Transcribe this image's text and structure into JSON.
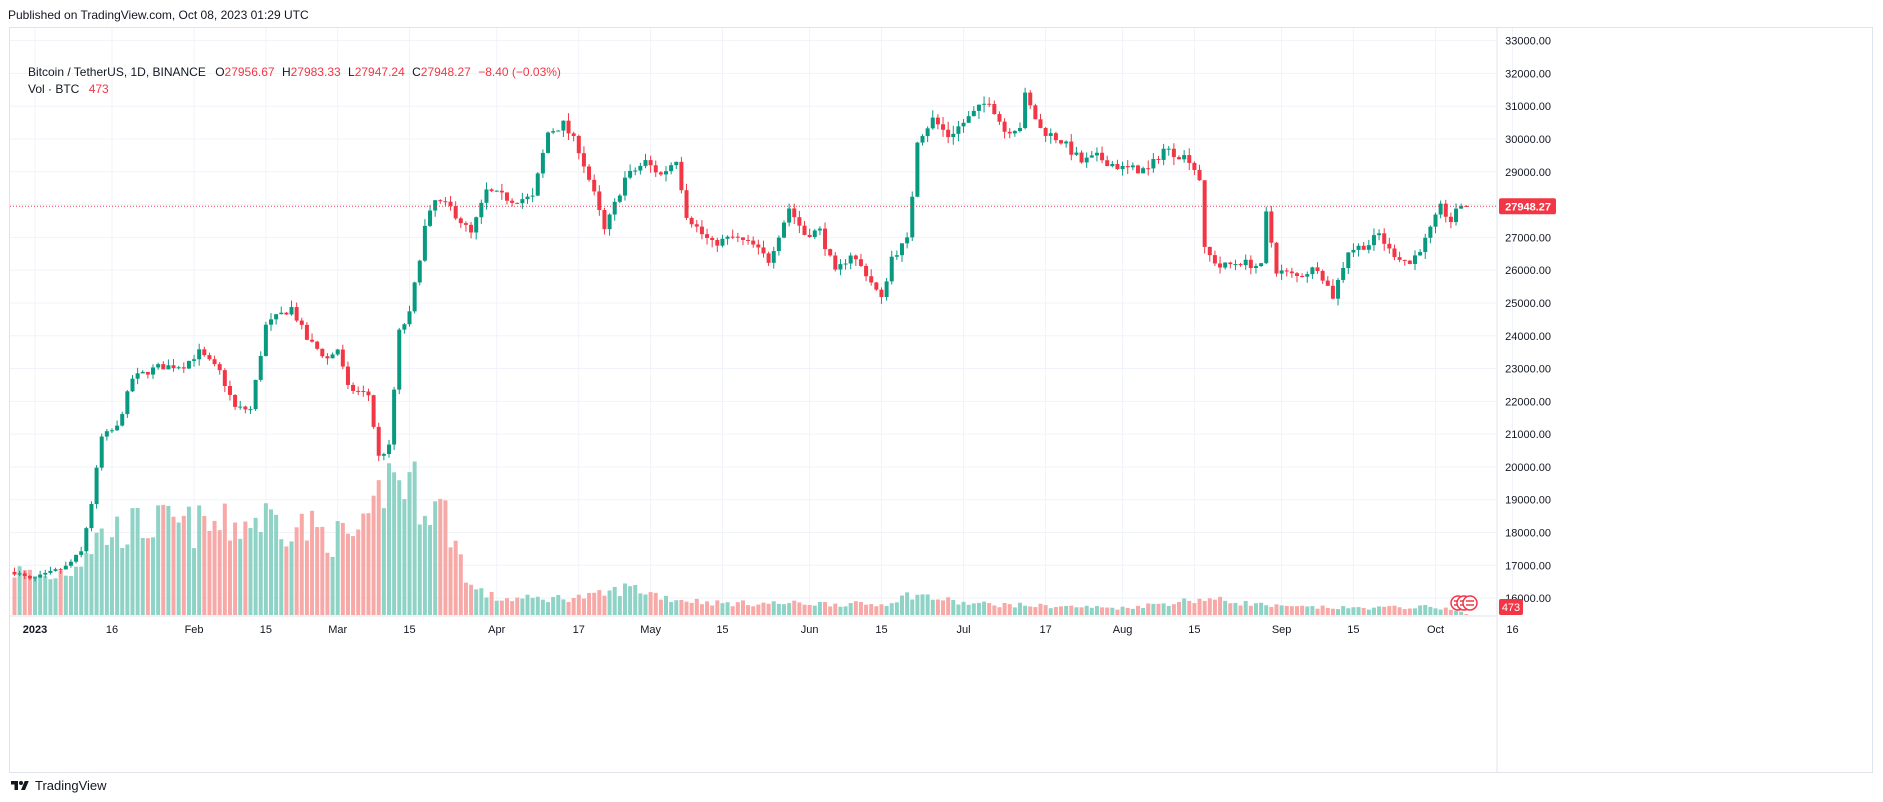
{
  "published_text": "Published on TradingView.com, Oct 08, 2023 01:29 UTC",
  "footer_brand": "TradingView",
  "legend": {
    "symbol": "Bitcoin / TetherUS, 1D, BINANCE",
    "o_label": "O",
    "o_value": "27956.67",
    "h_label": "H",
    "h_value": "27983.33",
    "l_label": "L",
    "l_value": "27947.24",
    "c_label": "C",
    "c_value": "27948.27",
    "change": "−8.40 (−0.03%)",
    "vol_label": "Vol · BTC",
    "vol_value": "473"
  },
  "colors": {
    "up": "#089981",
    "down": "#f23645",
    "vol_up": "#8fd3c7",
    "vol_down": "#f7a9a7",
    "grid": "#f0f3fa",
    "text": "#131722",
    "price_line": "#f23645"
  },
  "chart_data": {
    "type": "candlestick",
    "symbol": "BTCUSDT",
    "interval": "1D",
    "y_ticks": [
      16000,
      17000,
      18000,
      19000,
      20000,
      21000,
      22000,
      23000,
      24000,
      25000,
      26000,
      27000,
      28000,
      29000,
      30000,
      31000,
      32000,
      33000
    ],
    "y_tick_labels": [
      "16000.00",
      "17000.00",
      "18000.00",
      "19000.00",
      "20000.00",
      "21000.00",
      "22000.00",
      "23000.00",
      "24000.00",
      "25000.00",
      "26000.00",
      "27000.00",
      "28000.00",
      "29000.00",
      "30000.00",
      "31000.00",
      "32000.00",
      "33000.00"
    ],
    "ylim": [
      15500,
      33400
    ],
    "x_ticks": [
      {
        "label": "2023",
        "date": "2023-01-01"
      },
      {
        "label": "16",
        "date": "2023-01-16"
      },
      {
        "label": "Feb",
        "date": "2023-02-01"
      },
      {
        "label": "15",
        "date": "2023-02-15"
      },
      {
        "label": "Mar",
        "date": "2023-03-01"
      },
      {
        "label": "15",
        "date": "2023-03-15"
      },
      {
        "label": "Apr",
        "date": "2023-04-01"
      },
      {
        "label": "17",
        "date": "2023-04-17"
      },
      {
        "label": "May",
        "date": "2023-05-01"
      },
      {
        "label": "15",
        "date": "2023-05-15"
      },
      {
        "label": "Jun",
        "date": "2023-06-01"
      },
      {
        "label": "15",
        "date": "2023-06-15"
      },
      {
        "label": "Jul",
        "date": "2023-07-01"
      },
      {
        "label": "17",
        "date": "2023-07-17"
      },
      {
        "label": "Aug",
        "date": "2023-08-01"
      },
      {
        "label": "15",
        "date": "2023-08-15"
      },
      {
        "label": "Sep",
        "date": "2023-09-01"
      },
      {
        "label": "15",
        "date": "2023-09-15"
      },
      {
        "label": "Oct",
        "date": "2023-10-01"
      },
      {
        "label": "16",
        "date": "2023-10-16"
      }
    ],
    "first_candle_date": "2022-12-28",
    "last_price": 27948.27,
    "last_price_label": "27948.27",
    "last_volume_label": "473",
    "close_path": [
      [
        "2022-12-28",
        16800
      ],
      [
        "2022-12-31",
        16550
      ],
      [
        "2023-01-03",
        16700
      ],
      [
        "2023-01-07",
        16950
      ],
      [
        "2023-01-10",
        17400
      ],
      [
        "2023-01-12",
        18900
      ],
      [
        "2023-01-14",
        20900
      ],
      [
        "2023-01-17",
        21200
      ],
      [
        "2023-01-20",
        22700
      ],
      [
        "2023-01-25",
        23050
      ],
      [
        "2023-01-30",
        23100
      ],
      [
        "2023-02-02",
        23500
      ],
      [
        "2023-02-06",
        22900
      ],
      [
        "2023-02-09",
        21800
      ],
      [
        "2023-02-12",
        21750
      ],
      [
        "2023-02-15",
        24300
      ],
      [
        "2023-02-17",
        24550
      ],
      [
        "2023-02-20",
        24850
      ],
      [
        "2023-02-23",
        23900
      ],
      [
        "2023-02-27",
        23300
      ],
      [
        "2023-03-01",
        23600
      ],
      [
        "2023-03-03",
        22400
      ],
      [
        "2023-03-07",
        22200
      ],
      [
        "2023-03-09",
        20300
      ],
      [
        "2023-03-11",
        20600
      ],
      [
        "2023-03-13",
        24100
      ],
      [
        "2023-03-15",
        24650
      ],
      [
        "2023-03-18",
        27300
      ],
      [
        "2023-03-20",
        28100
      ],
      [
        "2023-03-23",
        27900
      ],
      [
        "2023-03-27",
        27100
      ],
      [
        "2023-03-30",
        28400
      ],
      [
        "2023-04-04",
        28150
      ],
      [
        "2023-04-08",
        28200
      ],
      [
        "2023-04-11",
        30200
      ],
      [
        "2023-04-14",
        30450
      ],
      [
        "2023-04-17",
        29700
      ],
      [
        "2023-04-20",
        28300
      ],
      [
        "2023-04-22",
        27200
      ],
      [
        "2023-04-26",
        28800
      ],
      [
        "2023-04-30",
        29300
      ],
      [
        "2023-05-03",
        28900
      ],
      [
        "2023-05-06",
        29400
      ],
      [
        "2023-05-08",
        27700
      ],
      [
        "2023-05-11",
        27100
      ],
      [
        "2023-05-13",
        26800
      ],
      [
        "2023-05-17",
        27000
      ],
      [
        "2023-05-21",
        26750
      ],
      [
        "2023-05-24",
        26300
      ],
      [
        "2023-05-28",
        27900
      ],
      [
        "2023-05-31",
        27100
      ],
      [
        "2023-06-03",
        27200
      ],
      [
        "2023-06-06",
        25900
      ],
      [
        "2023-06-09",
        26500
      ],
      [
        "2023-06-12",
        25900
      ],
      [
        "2023-06-15",
        25100
      ],
      [
        "2023-06-17",
        26400
      ],
      [
        "2023-06-20",
        26900
      ],
      [
        "2023-06-21",
        28300
      ],
      [
        "2023-06-22",
        30000
      ],
      [
        "2023-06-25",
        30600
      ],
      [
        "2023-06-28",
        30100
      ],
      [
        "2023-07-01",
        30500
      ],
      [
        "2023-07-06",
        31200
      ],
      [
        "2023-07-09",
        30250
      ],
      [
        "2023-07-12",
        30400
      ],
      [
        "2023-07-13",
        31300
      ],
      [
        "2023-07-16",
        30300
      ],
      [
        "2023-07-20",
        29950
      ],
      [
        "2023-07-24",
        29300
      ],
      [
        "2023-07-27",
        29450
      ],
      [
        "2023-08-01",
        29100
      ],
      [
        "2023-08-06",
        29050
      ],
      [
        "2023-08-09",
        29700
      ],
      [
        "2023-08-14",
        29400
      ],
      [
        "2023-08-16",
        28800
      ],
      [
        "2023-08-17",
        26600
      ],
      [
        "2023-08-20",
        26100
      ],
      [
        "2023-08-24",
        26250
      ],
      [
        "2023-08-28",
        26100
      ],
      [
        "2023-08-29",
        27700
      ],
      [
        "2023-08-31",
        26000
      ],
      [
        "2023-09-04",
        25800
      ],
      [
        "2023-09-08",
        26100
      ],
      [
        "2023-09-11",
        25200
      ],
      [
        "2023-09-14",
        26600
      ],
      [
        "2023-09-18",
        26800
      ],
      [
        "2023-09-20",
        27100
      ],
      [
        "2023-09-22",
        26600
      ],
      [
        "2023-09-26",
        26200
      ],
      [
        "2023-09-29",
        26900
      ],
      [
        "2023-10-02",
        27900
      ],
      [
        "2023-10-04",
        27500
      ],
      [
        "2023-10-06",
        28000
      ],
      [
        "2023-10-07",
        27948
      ]
    ],
    "volume_path_btc": [
      [
        "2022-12-28",
        190000
      ],
      [
        "2023-01-03",
        160000
      ],
      [
        "2023-01-08",
        200000
      ],
      [
        "2023-01-13",
        330000
      ],
      [
        "2023-01-18",
        370000
      ],
      [
        "2023-01-25",
        390000
      ],
      [
        "2023-02-01",
        380000
      ],
      [
        "2023-02-08",
        380000
      ],
      [
        "2023-02-15",
        420000
      ],
      [
        "2023-02-22",
        380000
      ],
      [
        "2023-03-01",
        330000
      ],
      [
        "2023-03-07",
        350000
      ],
      [
        "2023-03-10",
        580000
      ],
      [
        "2023-03-13",
        600000
      ],
      [
        "2023-03-17",
        520000
      ],
      [
        "2023-03-22",
        430000
      ],
      [
        "2023-03-27",
        120000
      ],
      [
        "2023-04-01",
        70000
      ],
      [
        "2023-04-10",
        70000
      ],
      [
        "2023-04-20",
        80000
      ],
      [
        "2023-04-27",
        120000
      ],
      [
        "2023-05-05",
        70000
      ],
      [
        "2023-05-15",
        50000
      ],
      [
        "2023-06-01",
        50000
      ],
      [
        "2023-06-15",
        45000
      ],
      [
        "2023-06-21",
        90000
      ],
      [
        "2023-07-01",
        50000
      ],
      [
        "2023-07-15",
        40000
      ],
      [
        "2023-08-01",
        30000
      ],
      [
        "2023-08-17",
        70000
      ],
      [
        "2023-09-01",
        35000
      ],
      [
        "2023-09-15",
        30000
      ],
      [
        "2023-10-01",
        35000
      ],
      [
        "2023-10-07",
        10000
      ]
    ],
    "volume_max_btc": 600000
  }
}
